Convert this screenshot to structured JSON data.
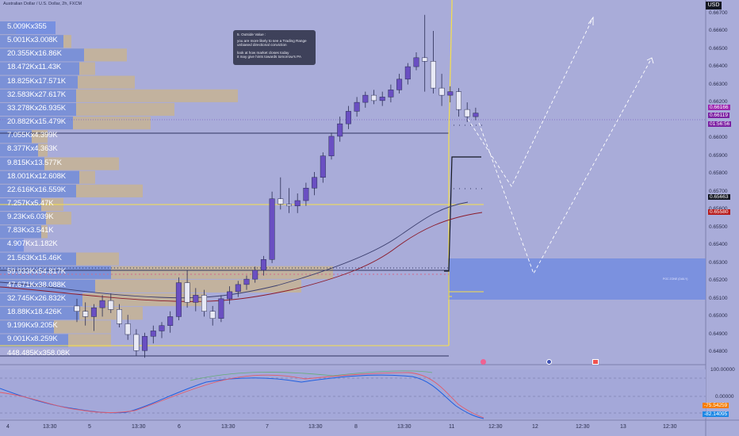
{
  "header": {
    "symbol": "Australian Dollar / U.S. Dollar, 2h, FXCM",
    "currency": "USD"
  },
  "price_axis": {
    "ticks": [
      "0.66700",
      "0.66600",
      "0.66500",
      "0.66400",
      "0.66300",
      "0.66200",
      "0.66000",
      "0.65900",
      "0.65800",
      "0.65700",
      "0.65600",
      "0.65500",
      "0.65400",
      "0.65300",
      "0.65200",
      "0.65100",
      "0.65000",
      "0.64900",
      "0.64800"
    ],
    "labels": [
      {
        "text": "0.66166",
        "color": "#9c27b0"
      },
      {
        "text": "0.66119",
        "color": "#7b1fa2"
      },
      {
        "text": "01:56:56",
        "color": "#7b1fa2"
      },
      {
        "text": "0.65663",
        "color": "#131722"
      },
      {
        "text": "0.65580",
        "color": "#b71c1c"
      }
    ]
  },
  "time_axis": [
    "4",
    "13:30",
    "5",
    "13:30",
    "6",
    "13:30",
    "7",
    "13:30",
    "8",
    "13:30",
    "11",
    "12:30",
    "12",
    "12:30",
    "13",
    "12:30"
  ],
  "volume_profile": [
    "5.009Kx355",
    "5.001Kx3.008K",
    "20.355Kx16.86K",
    "18.472Kx11.43K",
    "18.825Kx17.571K",
    "32.583Kx27.617K",
    "33.278Kx26.935K",
    "20.882Kx15.479K",
    "7.055Kx4.399K",
    "8.377Kx4.363K",
    "9.815Kx13.577K",
    "18.001Kx12.608K",
    "22.616Kx16.559K",
    "7.257Kx5.47K",
    "9.23Kx6.039K",
    "7.83Kx3.541K",
    "4.907Kx1.182K",
    "21.563Kx15.46K",
    "59.933Kx54.817K",
    "47.671Kx38.088K",
    "32.745Kx26.832K",
    "18.88Kx18.426K",
    "9.199Kx9.205K",
    "9.001Kx8.259K",
    "448.485Kx358.08K"
  ],
  "note": {
    "title": "5. Outside Value :",
    "lines": [
      "you are more likely to see a Trading Range",
      "unbiased directional conviction",
      "",
      "look at how market closes today",
      "it may give hints towards tomorrow's PA"
    ]
  },
  "poc_label": "POC ZONE (DAILY)",
  "oscillator": {
    "ticks": [
      "100.00000",
      "0.00000"
    ],
    "labels": [
      {
        "text": "-75.54259",
        "color": "#f57c00"
      },
      {
        "text": "-82.14095",
        "color": "#1e88e5"
      }
    ]
  },
  "colors": {
    "background": "#a9acd9",
    "bull": "#6a4fc2",
    "bear": "#e8e9f5",
    "yellow": "#f7e04a",
    "buy_volume": "#6f8be0",
    "sell_volume": "#c8b48f"
  },
  "chart_data": {
    "type": "candlestick",
    "symbol": "AUDUSD",
    "timeframe": "2h",
    "price_range": [
      0.6474,
      0.6672
    ],
    "ohlc": [
      [
        0.6506,
        0.651,
        0.6497,
        0.6503
      ],
      [
        0.6503,
        0.6508,
        0.6495,
        0.65
      ],
      [
        0.65,
        0.6507,
        0.6492,
        0.6505
      ],
      [
        0.6505,
        0.6512,
        0.65,
        0.6509
      ],
      [
        0.6509,
        0.6513,
        0.6502,
        0.6504
      ],
      [
        0.6504,
        0.6507,
        0.6494,
        0.6496
      ],
      [
        0.6496,
        0.6501,
        0.6487,
        0.649
      ],
      [
        0.649,
        0.6493,
        0.6478,
        0.6481
      ],
      [
        0.6481,
        0.6491,
        0.6477,
        0.6489
      ],
      [
        0.6489,
        0.6495,
        0.6485,
        0.6492
      ],
      [
        0.6492,
        0.6497,
        0.6488,
        0.6495
      ],
      [
        0.6495,
        0.6503,
        0.6491,
        0.65
      ],
      [
        0.65,
        0.6522,
        0.6498,
        0.6519
      ],
      [
        0.6519,
        0.6526,
        0.6505,
        0.6508
      ],
      [
        0.6508,
        0.6516,
        0.6503,
        0.6512
      ],
      [
        0.6512,
        0.6515,
        0.65,
        0.6503
      ],
      [
        0.6503,
        0.6506,
        0.6495,
        0.6499
      ],
      [
        0.6499,
        0.6512,
        0.6497,
        0.651
      ],
      [
        0.651,
        0.6517,
        0.6507,
        0.6514
      ],
      [
        0.6514,
        0.652,
        0.6511,
        0.6518
      ],
      [
        0.6518,
        0.6523,
        0.6515,
        0.6521
      ],
      [
        0.6521,
        0.6528,
        0.6519,
        0.6526
      ],
      [
        0.6526,
        0.6534,
        0.6523,
        0.6532
      ],
      [
        0.6532,
        0.657,
        0.653,
        0.6566
      ],
      [
        0.6566,
        0.6578,
        0.656,
        0.6563
      ],
      [
        0.6563,
        0.6572,
        0.6558,
        0.6562
      ],
      [
        0.6562,
        0.6569,
        0.6558,
        0.6565
      ],
      [
        0.6565,
        0.6575,
        0.6562,
        0.6572
      ],
      [
        0.6572,
        0.6581,
        0.6568,
        0.6578
      ],
      [
        0.6578,
        0.6592,
        0.6575,
        0.659
      ],
      [
        0.659,
        0.6603,
        0.6588,
        0.6601
      ],
      [
        0.6601,
        0.6612,
        0.6598,
        0.6608
      ],
      [
        0.6608,
        0.6618,
        0.6605,
        0.6615
      ],
      [
        0.6615,
        0.6623,
        0.6612,
        0.662
      ],
      [
        0.662,
        0.6626,
        0.6617,
        0.6624
      ],
      [
        0.6624,
        0.6627,
        0.6619,
        0.6621
      ],
      [
        0.6621,
        0.6626,
        0.6618,
        0.6623
      ],
      [
        0.6623,
        0.663,
        0.662,
        0.6627
      ],
      [
        0.6627,
        0.6636,
        0.6625,
        0.6633
      ],
      [
        0.6633,
        0.6642,
        0.663,
        0.664
      ],
      [
        0.664,
        0.6648,
        0.6638,
        0.6645
      ],
      [
        0.6645,
        0.6669,
        0.6626,
        0.6643
      ],
      [
        0.6643,
        0.666,
        0.6625,
        0.6628
      ],
      [
        0.6628,
        0.6636,
        0.6618,
        0.6624
      ],
      [
        0.6624,
        0.6629,
        0.662,
        0.6626
      ],
      [
        0.6626,
        0.6628,
        0.6612,
        0.6616
      ],
      [
        0.6616,
        0.662,
        0.6609,
        0.6612
      ],
      [
        0.6612,
        0.6617,
        0.661,
        0.6614
      ]
    ],
    "last_price": 0.66119,
    "levels": {
      "today_high": 0.66166,
      "prev_close": 0.65663,
      "ma": 0.6558
    }
  }
}
